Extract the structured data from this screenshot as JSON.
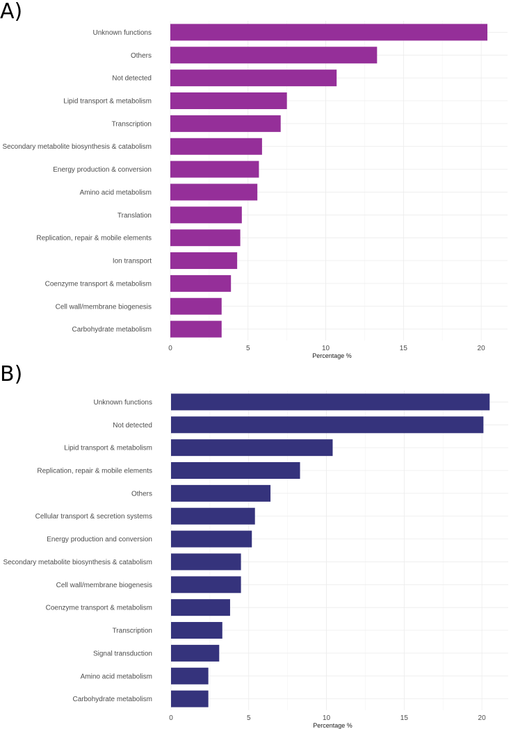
{
  "chart_data": [
    {
      "type": "bar",
      "orientation": "horizontal",
      "panel_label": "A)",
      "color": "#952f99",
      "categories": [
        "Unknown functions",
        "Others",
        "Not detected",
        "Lipid transport & metabolism",
        "Transcription",
        "Secondary metabolite biosynthesis & catabolism",
        "Energy production & conversion",
        "Amino acid metabolism",
        "Translation",
        "Replication, repair & mobile elements",
        "Ion transport",
        "Coenzyme transport & metabolism",
        "Cell wall/membrane biogenesis",
        "Carbohydrate metabolism"
      ],
      "values": [
        20.4,
        13.3,
        10.7,
        7.5,
        7.1,
        5.9,
        5.7,
        5.6,
        4.6,
        4.5,
        4.3,
        3.9,
        3.3,
        3.3
      ],
      "xlabel": "Percentage %",
      "ylabel": "",
      "xlim": [
        0,
        20.8
      ],
      "xticks": [
        "0",
        "5",
        "10",
        "15",
        "20"
      ]
    },
    {
      "type": "bar",
      "orientation": "horizontal",
      "panel_label": "B)",
      "color": "#35337c",
      "categories": [
        "Unknown functions",
        "Not detected",
        "Lipid transport & metabolism",
        "Replication, repair & mobile elements",
        "Others",
        "Cellular transport & secretion systems",
        "Energy production and conversion",
        "Secondary metabolite biosynthesis & catabolism",
        "Cell wall/membrane biogenesis",
        "Coenzyme transport & metabolism",
        "Transcription",
        "Signal transduction",
        "Amino acid metabolism",
        "Carbohydrate metabolism"
      ],
      "values": [
        20.5,
        20.1,
        10.4,
        8.3,
        6.4,
        5.4,
        5.2,
        4.5,
        4.5,
        3.8,
        3.3,
        3.1,
        2.4,
        2.4
      ],
      "xlabel": "Percentage %",
      "ylabel": "",
      "xlim": [
        0,
        20.8
      ],
      "xticks": [
        "0",
        "5",
        "10",
        "15",
        "20"
      ]
    }
  ]
}
